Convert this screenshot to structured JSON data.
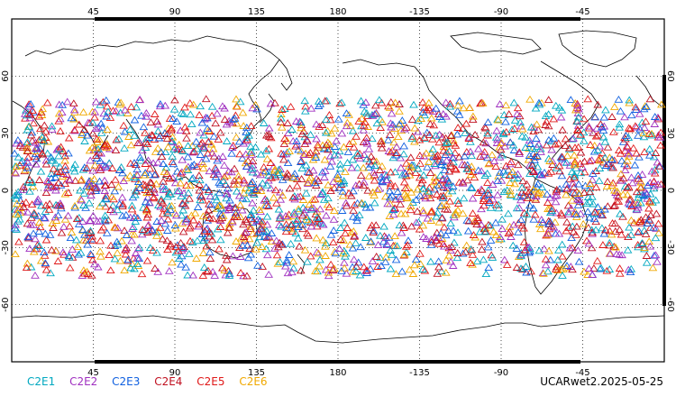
{
  "chart_data": {
    "type": "scatter",
    "projection": "cylindrical equidistant, centered on 180",
    "lon_range": [
      0,
      360
    ],
    "lat_range": [
      -90,
      90
    ],
    "gridlines": "dotted",
    "lon_ticks": [
      "45",
      "90",
      "135",
      "180",
      "-135",
      "-90",
      "-45"
    ],
    "lat_ticks": [
      "60",
      "30",
      "0",
      "-30",
      "-60"
    ],
    "marker": "open-triangle",
    "lat_coverage_deg": [
      -45,
      48
    ],
    "series": [
      {
        "name": "C2E1",
        "color": "#00a8c0"
      },
      {
        "name": "C2E2",
        "color": "#a030c0"
      },
      {
        "name": "C2E3",
        "color": "#1060e0"
      },
      {
        "name": "C2E4",
        "color": "#c01020"
      },
      {
        "name": "C2E5",
        "color": "#e01818"
      },
      {
        "name": "C2E6",
        "color": "#f0a800"
      }
    ]
  },
  "footer": {
    "label": "UCARwet2.2025-05-25"
  }
}
